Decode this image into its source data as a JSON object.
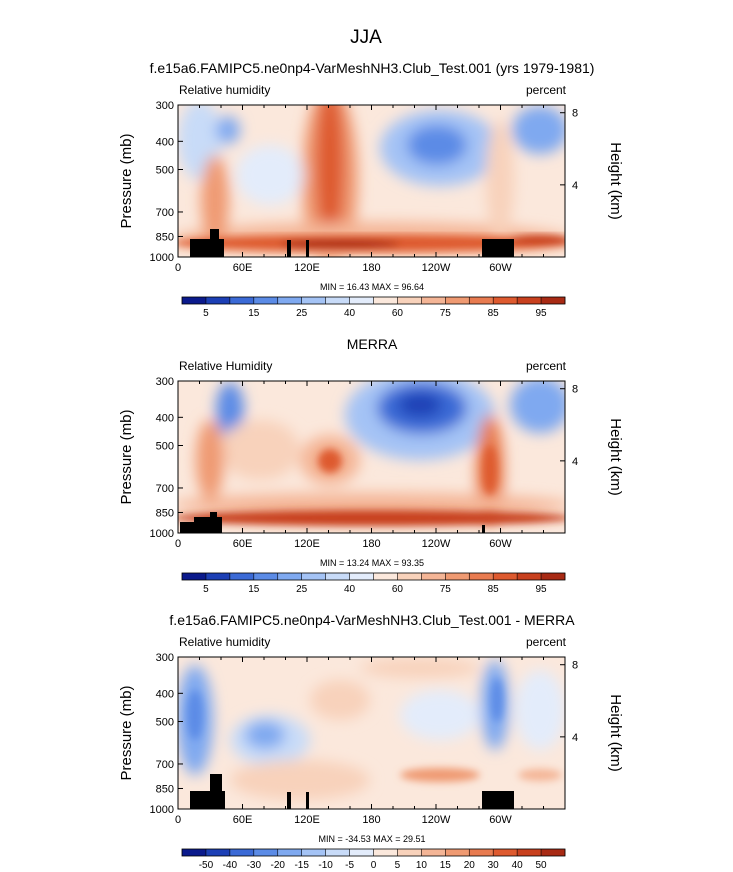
{
  "figure": {
    "title": "JJA"
  },
  "chart_data": [
    {
      "type": "heatmap",
      "title": "f.e15a6.FAMIPC5.ne0np4-VarMeshNH3.Club_Test.001 (yrs 1979-1981)",
      "left_label": "Relative humidity",
      "right_label": "percent",
      "ylabel": "Pressure (mb)",
      "y2label": "Height (km)",
      "xticks": [
        "0",
        "60E",
        "120E",
        "180",
        "120W",
        "60W"
      ],
      "xtick_values": [
        0,
        60,
        120,
        180,
        240,
        300
      ],
      "xlim": [
        0,
        360
      ],
      "yticks": [
        "300",
        "400",
        "500",
        "700",
        "850",
        "1000"
      ],
      "ytick_values": [
        300,
        400,
        500,
        700,
        850,
        1000
      ],
      "ylim": [
        1000,
        300
      ],
      "y2ticks": [
        "8",
        "4"
      ],
      "y2tick_values": [
        8,
        4
      ],
      "stats": "MIN =  16.43  MAX =  96.64",
      "colorbar_labels": [
        "5",
        "15",
        "25",
        "40",
        "60",
        "75",
        "85",
        "95"
      ],
      "colorbar_levels": [
        5,
        10,
        15,
        20,
        25,
        30,
        40,
        50,
        60,
        70,
        75,
        80,
        85,
        90,
        95
      ],
      "colorbar_colors": [
        "#0b1a8c",
        "#1c3fb5",
        "#3b6ad6",
        "#5b8be6",
        "#7fa9f0",
        "#a4c3f5",
        "#c8dbf8",
        "#e3ecfb",
        "#fbe8dc",
        "#f8d2bb",
        "#f4b596",
        "#ef9a72",
        "#e87b50",
        "#de5a2f",
        "#c8401e",
        "#a82a14"
      ]
    },
    {
      "type": "heatmap",
      "title": "MERRA",
      "left_label": "Relative Humidity",
      "right_label": "percent",
      "ylabel": "Pressure (mb)",
      "y2label": "Height (km)",
      "xticks": [
        "0",
        "60E",
        "120E",
        "180",
        "120W",
        "60W"
      ],
      "xtick_values": [
        0,
        60,
        120,
        180,
        240,
        300
      ],
      "xlim": [
        0,
        360
      ],
      "yticks": [
        "300",
        "400",
        "500",
        "700",
        "850",
        "1000"
      ],
      "ytick_values": [
        300,
        400,
        500,
        700,
        850,
        1000
      ],
      "ylim": [
        1000,
        300
      ],
      "y2ticks": [
        "8",
        "4"
      ],
      "y2tick_values": [
        8,
        4
      ],
      "stats": "MIN =  13.24  MAX =  93.35",
      "colorbar_labels": [
        "5",
        "15",
        "25",
        "40",
        "60",
        "75",
        "85",
        "95"
      ],
      "colorbar_levels": [
        5,
        10,
        15,
        20,
        25,
        30,
        40,
        50,
        60,
        70,
        75,
        80,
        85,
        90,
        95
      ],
      "colorbar_colors": [
        "#0b1a8c",
        "#1c3fb5",
        "#3b6ad6",
        "#5b8be6",
        "#7fa9f0",
        "#a4c3f5",
        "#c8dbf8",
        "#e3ecfb",
        "#fbe8dc",
        "#f8d2bb",
        "#f4b596",
        "#ef9a72",
        "#e87b50",
        "#de5a2f",
        "#c8401e",
        "#a82a14"
      ]
    },
    {
      "type": "heatmap",
      "title": "f.e15a6.FAMIPC5.ne0np4-VarMeshNH3.Club_Test.001 - MERRA",
      "left_label": "Relative humidity",
      "right_label": "percent",
      "ylabel": "Pressure (mb)",
      "y2label": "Height (km)",
      "xticks": [
        "0",
        "60E",
        "120E",
        "180",
        "120W",
        "60W"
      ],
      "xtick_values": [
        0,
        60,
        120,
        180,
        240,
        300
      ],
      "xlim": [
        0,
        360
      ],
      "yticks": [
        "300",
        "400",
        "500",
        "700",
        "850",
        "1000"
      ],
      "ytick_values": [
        300,
        400,
        500,
        700,
        850,
        1000
      ],
      "ylim": [
        1000,
        300
      ],
      "y2ticks": [
        "8",
        "4"
      ],
      "y2tick_values": [
        8,
        4
      ],
      "stats": "MIN = -34.53  MAX =  29.51",
      "colorbar_labels": [
        "-50",
        "-40",
        "-30",
        "-20",
        "-15",
        "-10",
        "-5",
        "0",
        "5",
        "10",
        "15",
        "20",
        "30",
        "40",
        "50"
      ],
      "colorbar_levels": [
        -50,
        -40,
        -30,
        -20,
        -15,
        -10,
        -5,
        0,
        5,
        10,
        15,
        20,
        30,
        40,
        50
      ],
      "colorbar_colors": [
        "#0b1a8c",
        "#1c3fb5",
        "#3b6ad6",
        "#5b8be6",
        "#7fa9f0",
        "#a4c3f5",
        "#c8dbf8",
        "#e3ecfb",
        "#fbe8dc",
        "#f8d2bb",
        "#f4b596",
        "#ef9a72",
        "#e87b50",
        "#de5a2f",
        "#c8401e",
        "#a82a14"
      ]
    }
  ]
}
